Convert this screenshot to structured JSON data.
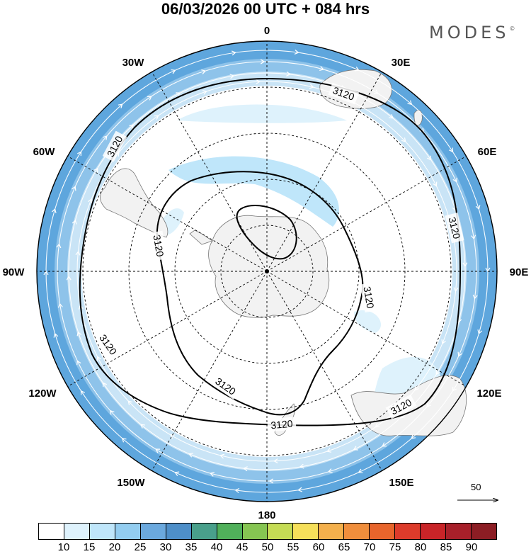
{
  "title": "06/03/2026  00 UTC  + 084 hrs",
  "logo": {
    "text": "MODES",
    "mark": "©"
  },
  "longitude_labels": [
    "0",
    "30E",
    "60E",
    "90E",
    "120E",
    "150E",
    "180",
    "150W",
    "120W",
    "90W",
    "60W",
    "30W"
  ],
  "contour": {
    "value_label": "3120"
  },
  "reference_vector": {
    "label": "50"
  },
  "colorbar": {
    "labels": [
      "10",
      "15",
      "20",
      "25",
      "30",
      "35",
      "40",
      "45",
      "50",
      "55",
      "60",
      "65",
      "70",
      "75",
      "80",
      "85",
      "90"
    ],
    "colors": [
      "#ffffff",
      "#def2fc",
      "#bfe6fa",
      "#93cdf0",
      "#6ba9de",
      "#4e8fc9",
      "#49a08b",
      "#50b05a",
      "#86c552",
      "#c5dc55",
      "#f6e05a",
      "#f4b04c",
      "#f08e3c",
      "#e8652c",
      "#dd3b2b",
      "#c92428",
      "#a8202a",
      "#8c1d24"
    ]
  },
  "colors": {
    "land": "#f2f2f2",
    "coastline": "#777777",
    "contour": "#000000",
    "grid": "#000000",
    "wind_band_outer": "#5ea6dd",
    "wind_band_mid": "#8ec3ea",
    "wind_band_inner": "#c9e4f6"
  }
}
